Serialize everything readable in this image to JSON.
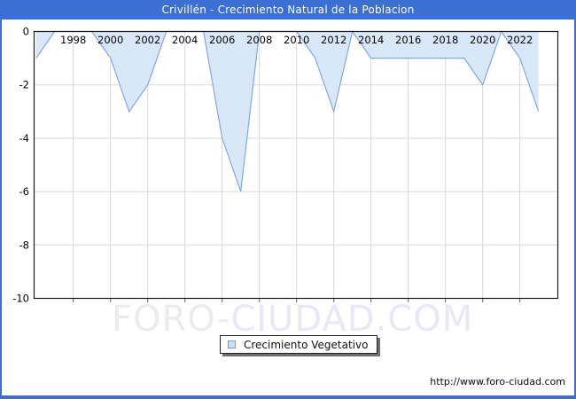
{
  "header": {
    "title": "Crivillén - Crecimiento Natural de la Poblacion",
    "bar_color": "#3b6fd1"
  },
  "legend": {
    "label": "Crecimiento Vegetativo"
  },
  "watermark": {
    "part1": "FORO-",
    "part2": "CIUDAD.COM"
  },
  "footer": {
    "url": "http://www.foro-ciudad.com"
  },
  "chart_data": {
    "type": "area",
    "title": "Crivillén - Crecimiento Natural de la Poblacion",
    "series_name": "Crecimiento Vegetativo",
    "x": [
      1996,
      1997,
      1998,
      1999,
      2000,
      2001,
      2002,
      2003,
      2004,
      2005,
      2006,
      2007,
      2008,
      2009,
      2010,
      2011,
      2012,
      2013,
      2014,
      2015,
      2016,
      2017,
      2018,
      2019,
      2020,
      2021,
      2022,
      2023
    ],
    "values": [
      -1,
      0,
      0,
      0,
      -1,
      -3,
      -2,
      0,
      0,
      0,
      -4,
      -6,
      0,
      0,
      0,
      -1,
      -3,
      0,
      -1,
      -1,
      -1,
      -1,
      -1,
      -1,
      -2,
      0,
      -1,
      -3
    ],
    "ylim": [
      -10,
      0
    ],
    "yticks": [
      0,
      -2,
      -4,
      -6,
      -8,
      -10
    ],
    "xticklabels": [
      1998,
      2000,
      2002,
      2004,
      2006,
      2008,
      2010,
      2012,
      2014,
      2016,
      2018,
      2020,
      2022
    ],
    "grid": true,
    "legend_position": "bottom-center",
    "colors": {
      "fill": "#d9e8f8",
      "line": "#82a9dc",
      "grid": "#d9d9d9",
      "axis": "#1a1a1a",
      "tick": "#666666",
      "label": "#000000"
    }
  }
}
